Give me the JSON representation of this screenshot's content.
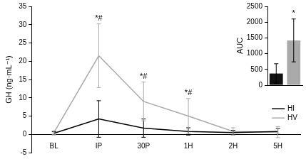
{
  "chart_data": [
    {
      "type": "line",
      "y_label": "GH (ng·mL⁻¹)",
      "categories": [
        "BL",
        "IP",
        "30P",
        "1H",
        "2H",
        "5H"
      ],
      "series": [
        {
          "name": "HI",
          "color": "#000000",
          "values": [
            0.3,
            4.2,
            1.7,
            0.8,
            0.5,
            0.8
          ],
          "errors": [
            0.4,
            5.0,
            2.5,
            1.0,
            0.6,
            0.8
          ]
        },
        {
          "name": "HV",
          "color": "#aaaaaa",
          "values": [
            0.5,
            21.5,
            9.0,
            5.0,
            0.8,
            0.6
          ],
          "errors": [
            0.5,
            8.7,
            5.3,
            4.8,
            1.0,
            1.5
          ]
        }
      ],
      "ylim": [
        -5,
        35
      ],
      "yticks": [
        -5,
        0,
        5,
        10,
        15,
        20,
        25,
        30,
        35
      ],
      "grid": false,
      "legend": "right",
      "annotations": [
        {
          "category": "IP",
          "series": "HV",
          "text": "*#"
        },
        {
          "category": "30P",
          "series": "HV",
          "text": "*#"
        },
        {
          "category": "1H",
          "series": "HV",
          "text": "*#"
        }
      ]
    },
    {
      "type": "bar",
      "y_label": "AUC",
      "categories": [
        null,
        null
      ],
      "values": [
        370,
        1420
      ],
      "errors": [
        310,
        680
      ],
      "colors": [
        "#111111",
        "#aaaaaa"
      ],
      "ylim": [
        0,
        2500
      ],
      "yticks": [
        0,
        500,
        1000,
        1500,
        2000,
        2500
      ],
      "grid": false,
      "tick_labels": "y",
      "annotations": [
        {
          "index": 1,
          "text": "*"
        }
      ]
    }
  ]
}
